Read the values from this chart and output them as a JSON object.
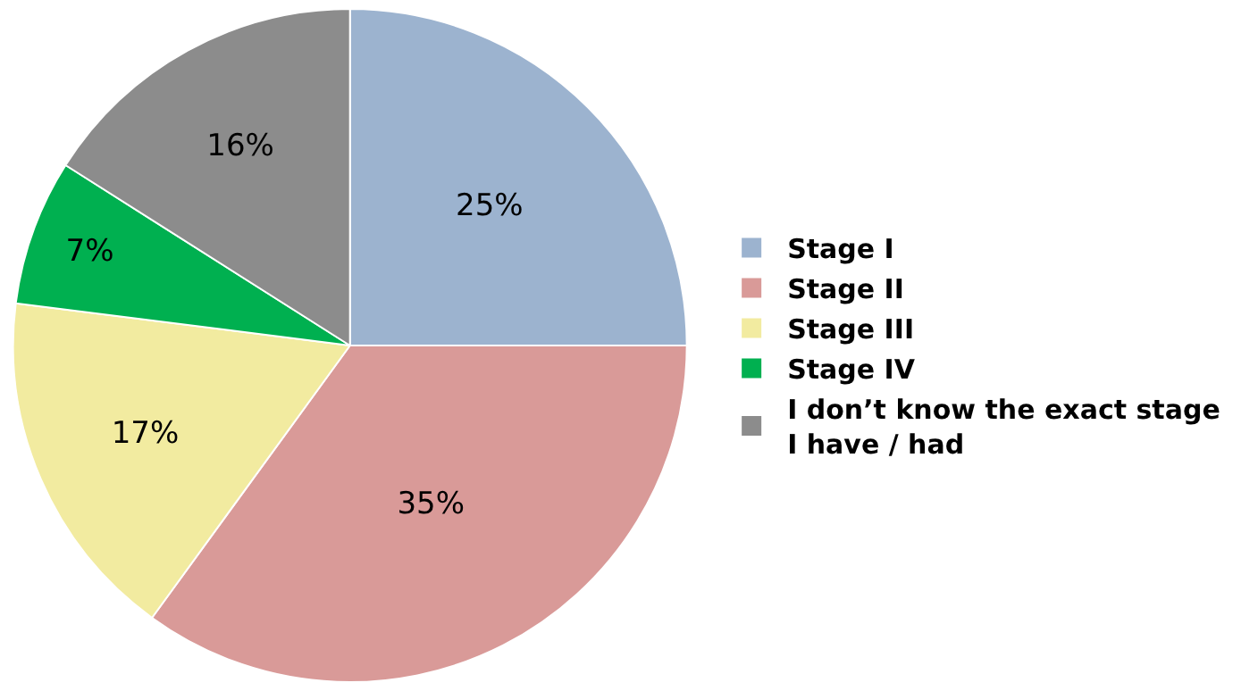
{
  "chart_data": {
    "type": "pie",
    "categories": [
      "Stage I",
      "Stage II",
      "Stage III",
      "Stage IV",
      "I don’t know the exact stage\nI have / had"
    ],
    "values": [
      25,
      35,
      17,
      7,
      16
    ],
    "value_labels": [
      "25%",
      "35%",
      "17%",
      "7%",
      "16%"
    ],
    "colors": [
      "#9cb3cf",
      "#d99a98",
      "#f2eba0",
      "#00b050",
      "#8c8c8c"
    ],
    "legend": "right"
  }
}
